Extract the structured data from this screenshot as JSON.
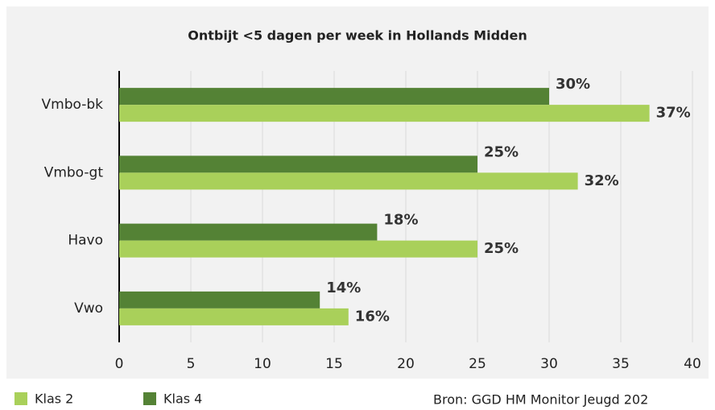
{
  "chart_data": {
    "type": "hbar",
    "title": "Ontbijt <5 dagen per week in Hollands Midden",
    "categories": [
      "Vmbo-bk",
      "Vmbo-gt",
      "Havo",
      "Vwo"
    ],
    "series": [
      {
        "name": "Klas 2",
        "color": "#a9d05a",
        "values": [
          37,
          32,
          25,
          16
        ],
        "value_labels": [
          "37%",
          "32%",
          "25%",
          "16%"
        ]
      },
      {
        "name": "Klas 4",
        "color": "#548235",
        "values": [
          30,
          25,
          18,
          14
        ],
        "value_labels": [
          "30%",
          "25%",
          "18%",
          "14%"
        ]
      }
    ],
    "xlim": [
      0,
      40
    ],
    "xticks": [
      0,
      5,
      10,
      15,
      20,
      25,
      30,
      35,
      40
    ],
    "grid": true,
    "source": "Bron: GGD HM Monitor Jeugd 202"
  }
}
